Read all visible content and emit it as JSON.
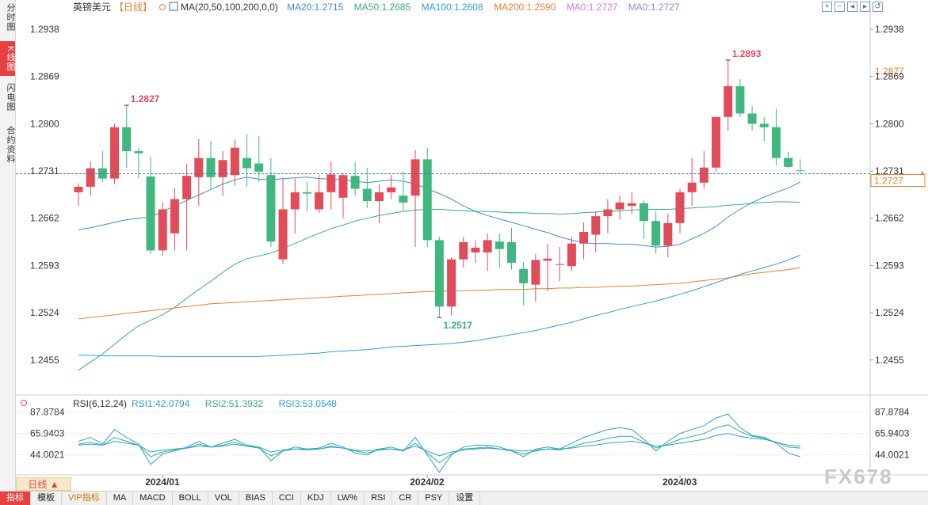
{
  "sidebar": {
    "tabs": [
      {
        "label": "分时图"
      },
      {
        "label": "K线图"
      },
      {
        "label": "闪电图"
      },
      {
        "label": "合约资料"
      }
    ]
  },
  "header": {
    "symbol": "英镑美元",
    "period": "【日线】",
    "ma_label": "MA(20,50,100,200,0,0)",
    "ma_values": [
      {
        "text": "MA20:1.2715",
        "color": "#3a8fd6"
      },
      {
        "text": "MA50:1.2685",
        "color": "#35b07a"
      },
      {
        "text": "MA100:1.2608",
        "color": "#2ba0d8"
      },
      {
        "text": "MA200:1.2590",
        "color": "#e8822f"
      },
      {
        "text": "MA0:1.2727",
        "color": "#d77ad7"
      },
      {
        "text": "MA0:1.2727",
        "color": "#8a8ad8"
      }
    ]
  },
  "rsi_header": {
    "label": "RSI(6,12,24)",
    "values": [
      {
        "text": "RSI1:42.0794",
        "color": "#2b9fd6"
      },
      {
        "text": "RSI2:51.3932",
        "color": "#35b07a"
      },
      {
        "text": "RSI3:53.0548",
        "color": "#2ba0d8"
      }
    ]
  },
  "period_button": "日线 ▲",
  "bottom_tabs": [
    "指标",
    "模板",
    "VIP指标",
    "MA",
    "MACD",
    "BOLL",
    "VOL",
    "BIAS",
    "CCI",
    "KDJ",
    "LW%",
    "RSI",
    "CR",
    "PSY",
    "设置"
  ],
  "watermark": "FX678",
  "chart_data": {
    "type": "candlestick",
    "y_ticks": [
      "1.2938",
      "1.2869",
      "1.2800",
      "1.2731",
      "1.2662",
      "1.2593",
      "1.2524",
      "1.2455"
    ],
    "ylim": [
      1.2405,
      1.296
    ],
    "x_labels": [
      {
        "label": "2024/01",
        "index": 7
      },
      {
        "label": "2024/02",
        "index": 29
      },
      {
        "label": "2024/03",
        "index": 50
      }
    ],
    "candles": [
      [
        1.27,
        1.2713,
        1.268,
        1.2708
      ],
      [
        1.2708,
        1.2745,
        1.2695,
        1.2735
      ],
      [
        1.2735,
        1.276,
        1.2715,
        1.272
      ],
      [
        1.272,
        1.28,
        1.2712,
        1.2795
      ],
      [
        1.2795,
        1.2827,
        1.2735,
        1.276
      ],
      [
        1.276,
        1.2765,
        1.272,
        1.2757
      ],
      [
        1.2723,
        1.2752,
        1.261,
        1.2615
      ],
      [
        1.2615,
        1.2685,
        1.2608,
        1.2675
      ],
      [
        1.264,
        1.2706,
        1.2615,
        1.269
      ],
      [
        1.269,
        1.2741,
        1.2615,
        1.2724
      ],
      [
        1.2722,
        1.2778,
        1.268,
        1.275
      ],
      [
        1.275,
        1.2775,
        1.2705,
        1.2722
      ],
      [
        1.2722,
        1.276,
        1.2695,
        1.2747
      ],
      [
        1.2725,
        1.2777,
        1.271,
        1.2765
      ],
      [
        1.275,
        1.2785,
        1.2708,
        1.2735
      ],
      [
        1.2742,
        1.2782,
        1.2715,
        1.273
      ],
      [
        1.2725,
        1.275,
        1.262,
        1.2628
      ],
      [
        1.2602,
        1.272,
        1.2595,
        1.2675
      ],
      [
        1.2675,
        1.272,
        1.264,
        1.27
      ],
      [
        1.27,
        1.2715,
        1.2672,
        1.2698
      ],
      [
        1.2675,
        1.2725,
        1.267,
        1.27
      ],
      [
        1.27,
        1.2745,
        1.2675,
        1.2726
      ],
      [
        1.2692,
        1.2728,
        1.2662,
        1.2725
      ],
      [
        1.2724,
        1.2744,
        1.2695,
        1.2705
      ],
      [
        1.2705,
        1.2736,
        1.2677,
        1.2687
      ],
      [
        1.2687,
        1.2712,
        1.2655,
        1.27
      ],
      [
        1.27,
        1.2725,
        1.269,
        1.2707
      ],
      [
        1.2695,
        1.273,
        1.2672,
        1.2685
      ],
      [
        1.2695,
        1.2762,
        1.262,
        1.2748
      ],
      [
        1.2748,
        1.2765,
        1.262,
        1.263
      ],
      [
        1.263,
        1.2635,
        1.2517,
        1.2533
      ],
      [
        1.2533,
        1.2605,
        1.252,
        1.2602
      ],
      [
        1.2602,
        1.2635,
        1.259,
        1.2627
      ],
      [
        1.2612,
        1.263,
        1.2597,
        1.2619
      ],
      [
        1.2612,
        1.264,
        1.2585,
        1.263
      ],
      [
        1.2628,
        1.264,
        1.259,
        1.2617
      ],
      [
        1.2627,
        1.2648,
        1.2587,
        1.2597
      ],
      [
        1.2588,
        1.2598,
        1.2535,
        1.2567
      ],
      [
        1.2565,
        1.261,
        1.254,
        1.2601
      ],
      [
        1.26,
        1.2625,
        1.2556,
        1.2603
      ],
      [
        1.2595,
        1.262,
        1.257,
        1.2595
      ],
      [
        1.2592,
        1.2635,
        1.2585,
        1.2625
      ],
      [
        1.2625,
        1.2656,
        1.2602,
        1.2642
      ],
      [
        1.2638,
        1.2672,
        1.2612,
        1.2665
      ],
      [
        1.2665,
        1.269,
        1.264,
        1.2675
      ],
      [
        1.2675,
        1.2695,
        1.266,
        1.2685
      ],
      [
        1.268,
        1.27,
        1.2668,
        1.2684
      ],
      [
        1.2684,
        1.2688,
        1.2632,
        1.2658
      ],
      [
        1.2658,
        1.2672,
        1.261,
        1.2622
      ],
      [
        1.2622,
        1.2669,
        1.2605,
        1.2655
      ],
      [
        1.2655,
        1.2705,
        1.264,
        1.27
      ],
      [
        1.27,
        1.275,
        1.268,
        1.2714
      ],
      [
        1.2714,
        1.276,
        1.2705,
        1.2736
      ],
      [
        1.2736,
        1.281,
        1.273,
        1.281
      ],
      [
        1.281,
        1.2893,
        1.279,
        1.2855
      ],
      [
        1.2855,
        1.2865,
        1.281,
        1.2815
      ],
      [
        1.2815,
        1.2826,
        1.279,
        1.28
      ],
      [
        1.28,
        1.281,
        1.2775,
        1.2795
      ],
      [
        1.2795,
        1.2822,
        1.274,
        1.275
      ],
      [
        1.275,
        1.2759,
        1.2735,
        1.2737
      ],
      [
        1.2732,
        1.2748,
        1.2728,
        1.2731
      ]
    ],
    "annotations": [
      {
        "text": "1.2827",
        "index": 4,
        "price": 1.2827,
        "color": "#e24b5a"
      },
      {
        "text": "1.2517",
        "index": 30,
        "price": 1.2517,
        "color": "#35b07a"
      },
      {
        "text": "1.2893",
        "index": 54,
        "price": 1.2893,
        "color": "#e24b5a"
      }
    ],
    "current_price": {
      "text": "1.2727",
      "value": 1.2727,
      "color": "#e8822f"
    },
    "highlight_price": {
      "text": "1.2877",
      "value": 1.2877,
      "color": "#e8822f"
    },
    "ma_series": [
      {
        "name": "MA20",
        "color": "#3a8fd6",
        "values": [
          1.2645,
          1.2648,
          1.2652,
          1.2656,
          1.266,
          1.2662,
          1.2664,
          1.2672,
          1.268,
          1.2688,
          1.2696,
          1.2704,
          1.2712,
          1.2718,
          1.2722,
          1.2719,
          1.2718,
          1.272,
          1.2721,
          1.2722,
          1.272,
          1.2719,
          1.2718,
          1.2716,
          1.2714,
          1.2716,
          1.2718,
          1.2716,
          1.2712,
          1.2705,
          1.2698,
          1.269,
          1.268,
          1.2672,
          1.2666,
          1.2661,
          1.2656,
          1.2651,
          1.2646,
          1.2641,
          1.2635,
          1.263,
          1.2626,
          1.2625,
          1.2625,
          1.2624,
          1.2624,
          1.2622,
          1.262,
          1.2621,
          1.2624,
          1.2632,
          1.264,
          1.265,
          1.2664,
          1.2675,
          1.2685,
          1.2693,
          1.27,
          1.2706,
          1.2715
        ]
      },
      {
        "name": "MA50",
        "color": "#35b07a",
        "values": [
          1.244,
          1.2452,
          1.2464,
          1.2478,
          1.2492,
          1.2505,
          1.2513,
          1.2521,
          1.2532,
          1.2545,
          1.2558,
          1.257,
          1.2583,
          1.2595,
          1.2603,
          1.2607,
          1.2611,
          1.2618,
          1.2625,
          1.2633,
          1.264,
          1.2647,
          1.2652,
          1.2658,
          1.2662,
          1.2666,
          1.2669,
          1.2672,
          1.2674,
          1.2675,
          1.2675,
          1.2674,
          1.2673,
          1.2672,
          1.2672,
          1.2671,
          1.267,
          1.267,
          1.2669,
          1.2669,
          1.2668,
          1.2669,
          1.267,
          1.2671,
          1.2672,
          1.2673,
          1.2674,
          1.2675,
          1.2675,
          1.2675,
          1.2676,
          1.2677,
          1.2678,
          1.2679,
          1.2681,
          1.2682,
          1.2684,
          1.2685,
          1.2686,
          1.2686,
          1.2685
        ]
      },
      {
        "name": "MA100",
        "color": "#2ba0d8",
        "values": [
          1.2462,
          1.2462,
          1.2461,
          1.2461,
          1.2461,
          1.2461,
          1.2461,
          1.246,
          1.246,
          1.246,
          1.246,
          1.246,
          1.246,
          1.246,
          1.246,
          1.246,
          1.2461,
          1.2462,
          1.2463,
          1.2464,
          1.2465,
          1.2467,
          1.2468,
          1.2469,
          1.247,
          1.2472,
          1.2474,
          1.2475,
          1.2476,
          1.2477,
          1.2478,
          1.2479,
          1.2481,
          1.2483,
          1.2486,
          1.2489,
          1.2492,
          1.2495,
          1.2498,
          1.2502,
          1.2506,
          1.251,
          1.2515,
          1.252,
          1.2524,
          1.2529,
          1.2533,
          1.2537,
          1.2541,
          1.2546,
          1.2551,
          1.2556,
          1.2562,
          1.2568,
          1.2574,
          1.258,
          1.2585,
          1.259,
          1.2595,
          1.2601,
          1.2608
        ]
      },
      {
        "name": "MA200",
        "color": "#e8822f",
        "values": [
          1.2515,
          1.2517,
          1.2519,
          1.2521,
          1.2523,
          1.2525,
          1.2527,
          1.2529,
          1.2531,
          1.2533,
          1.2535,
          1.2537,
          1.2538,
          1.2539,
          1.254,
          1.2541,
          1.2542,
          1.2543,
          1.2544,
          1.2545,
          1.2546,
          1.2547,
          1.2548,
          1.2549,
          1.255,
          1.2551,
          1.2552,
          1.2553,
          1.2554,
          1.2555,
          1.2555,
          1.2556,
          1.2556,
          1.2557,
          1.2557,
          1.2558,
          1.2558,
          1.2558,
          1.2559,
          1.2559,
          1.256,
          1.256,
          1.2561,
          1.2561,
          1.2562,
          1.2563,
          1.2563,
          1.2564,
          1.2565,
          1.2566,
          1.2567,
          1.2569,
          1.2571,
          1.2573,
          1.2575,
          1.2578,
          1.2581,
          1.2583,
          1.2585,
          1.2587,
          1.259
        ]
      }
    ],
    "rsi": {
      "y_ticks": [
        "87.8784",
        "65.9403",
        "44.0021"
      ],
      "ylim": [
        25,
        95
      ],
      "series": [
        {
          "name": "RSI1",
          "color": "#2b9fd6",
          "values": [
            58,
            62,
            55,
            70,
            62,
            55,
            34,
            45,
            48,
            52,
            58,
            52,
            56,
            60,
            54,
            52,
            38,
            48,
            52,
            50,
            51,
            56,
            52,
            46,
            44,
            50,
            52,
            48,
            62,
            44,
            26,
            44,
            52,
            54,
            54,
            52,
            48,
            42,
            50,
            52,
            50,
            56,
            62,
            66,
            70,
            72,
            70,
            60,
            48,
            58,
            66,
            70,
            74,
            82,
            86,
            72,
            64,
            62,
            56,
            46,
            42
          ]
        },
        {
          "name": "RSI2",
          "color": "#35b07a",
          "values": [
            55,
            57,
            54,
            62,
            58,
            54,
            42,
            47,
            49,
            51,
            55,
            52,
            54,
            57,
            53,
            51,
            43,
            48,
            50,
            49,
            50,
            53,
            51,
            48,
            46,
            49,
            50,
            48,
            56,
            46,
            36,
            45,
            50,
            51,
            52,
            50,
            48,
            45,
            48,
            50,
            49,
            52,
            56,
            58,
            61,
            63,
            63,
            57,
            51,
            55,
            60,
            63,
            66,
            72,
            75,
            68,
            63,
            61,
            57,
            52,
            51
          ]
        },
        {
          "name": "RSI3",
          "color": "#2ba0d8",
          "values": [
            54,
            55,
            54,
            58,
            56,
            54,
            47,
            49,
            50,
            51,
            53,
            52,
            53,
            55,
            53,
            52,
            47,
            49,
            50,
            50,
            50,
            52,
            51,
            49,
            48,
            50,
            50,
            49,
            53,
            48,
            43,
            47,
            49,
            50,
            51,
            50,
            49,
            48,
            49,
            50,
            50,
            51,
            53,
            54,
            56,
            57,
            58,
            56,
            53,
            54,
            56,
            58,
            60,
            64,
            66,
            63,
            61,
            60,
            57,
            54,
            53
          ]
        }
      ]
    }
  }
}
